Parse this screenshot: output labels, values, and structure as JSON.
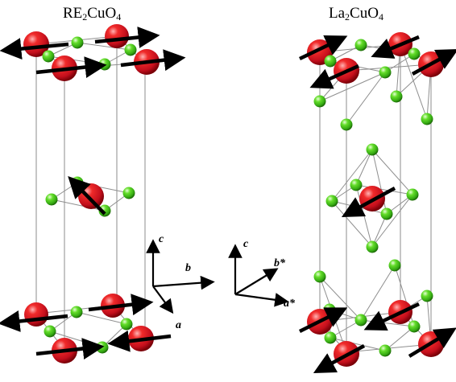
{
  "titles": {
    "left": {
      "base": "RE",
      "sub1": "2",
      "mid": "CuO",
      "sub2": "4"
    },
    "right": {
      "base": "La",
      "sub1": "2",
      "mid": "CuO",
      "sub2": "4"
    }
  },
  "axes": {
    "tetragonal": {
      "c": "c",
      "b": "b",
      "a": "a"
    },
    "orthorhombic": {
      "c": "c",
      "b": "b*",
      "a": "a*"
    }
  },
  "colors": {
    "cu_atom": "#e3152a",
    "o_atom": "#4fd41e",
    "bond": "#9a9a9a",
    "spin_arrow": "#000000"
  },
  "icons": {
    "copper": "red-sphere-icon",
    "oxygen": "green-sphere-icon",
    "spin": "spin-arrow-icon"
  }
}
